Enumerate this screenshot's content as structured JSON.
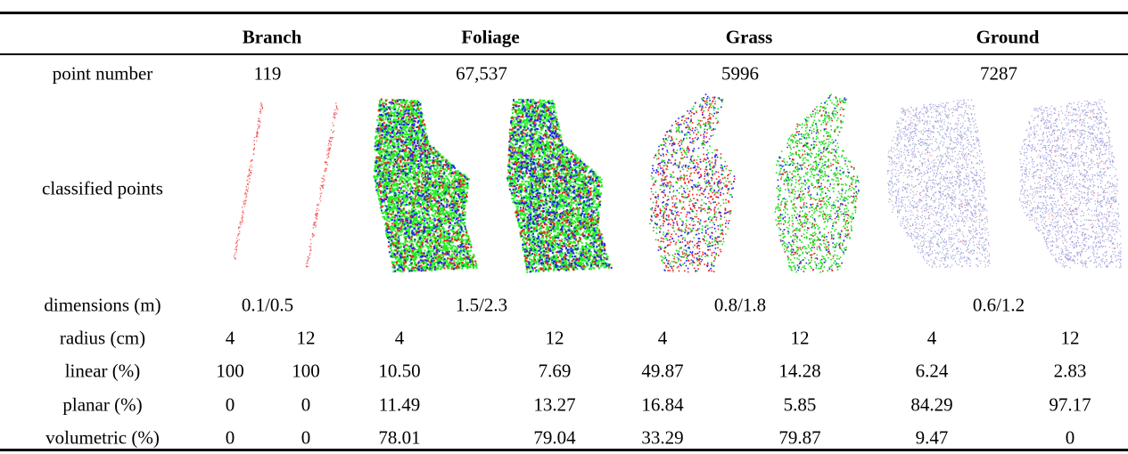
{
  "table": {
    "columns": [
      "Branch",
      "Foliage",
      "Grass",
      "Ground"
    ],
    "rows": [
      {
        "label": "point number",
        "cells": [
          "119",
          "67,537",
          "5996",
          "7287"
        ]
      },
      {
        "label": "classified points"
      },
      {
        "label": "dimensions (m)",
        "cells": [
          "0.1/0.5",
          "1.5/2.3",
          "0.8/1.8",
          "0.6/1.2"
        ]
      },
      {
        "label": "radius (cm)",
        "cells": [
          "4",
          "12",
          "4",
          "12",
          "4",
          "12",
          "4",
          "12"
        ]
      },
      {
        "label": "linear (%)",
        "cells": [
          "100",
          "100",
          "10.50",
          "7.69",
          "49.87",
          "14.28",
          "6.24",
          "2.83"
        ]
      },
      {
        "label": "planar (%)",
        "cells": [
          "0",
          "0",
          "11.49",
          "13.27",
          "16.84",
          "5.85",
          "84.29",
          "97.17"
        ]
      },
      {
        "label": "volumetric (%)",
        "cells": [
          "0",
          "0",
          "78.01",
          "79.04",
          "33.29",
          "79.87",
          "9.47",
          "0"
        ]
      }
    ]
  }
}
